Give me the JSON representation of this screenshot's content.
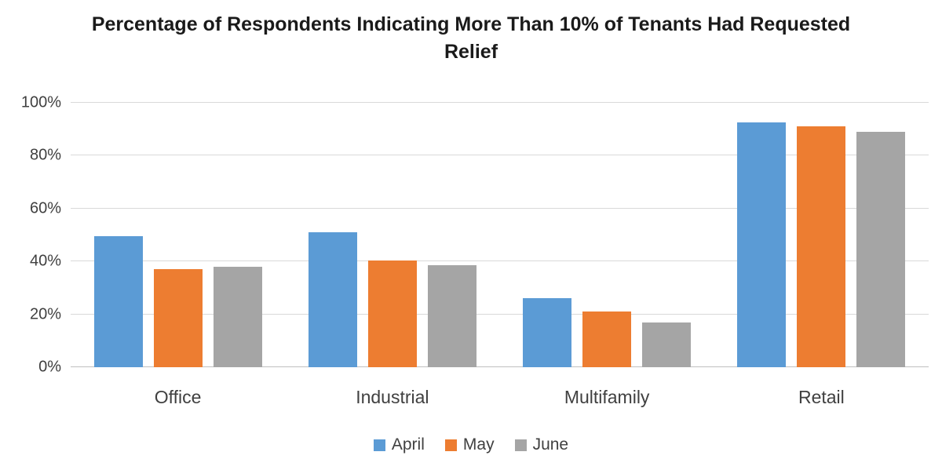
{
  "title": "Percentage of Respondents Indicating More Than 10% of Tenants Had Requested Relief",
  "chart_data": {
    "type": "bar",
    "title": "Percentage of Respondents Indicating More Than 10% of Tenants Had Requested Relief",
    "categories": [
      "Office",
      "Industrial",
      "Multifamily",
      "Retail"
    ],
    "series": [
      {
        "name": "April",
        "color": "#5B9BD5",
        "values": [
          49.5,
          51,
          26,
          92.5
        ]
      },
      {
        "name": "May",
        "color": "#ED7D31",
        "values": [
          37,
          40.5,
          21,
          91
        ]
      },
      {
        "name": "June",
        "color": "#A5A5A5",
        "values": [
          38,
          38.5,
          17,
          89
        ]
      }
    ],
    "xlabel": "",
    "ylabel": "",
    "ylim": [
      0,
      100
    ],
    "ytick_values": [
      0,
      20,
      40,
      60,
      80,
      100
    ],
    "yticks": [
      "0%",
      "20%",
      "40%",
      "60%",
      "80%",
      "100%"
    ],
    "grid": true,
    "legend_position": "bottom"
  }
}
